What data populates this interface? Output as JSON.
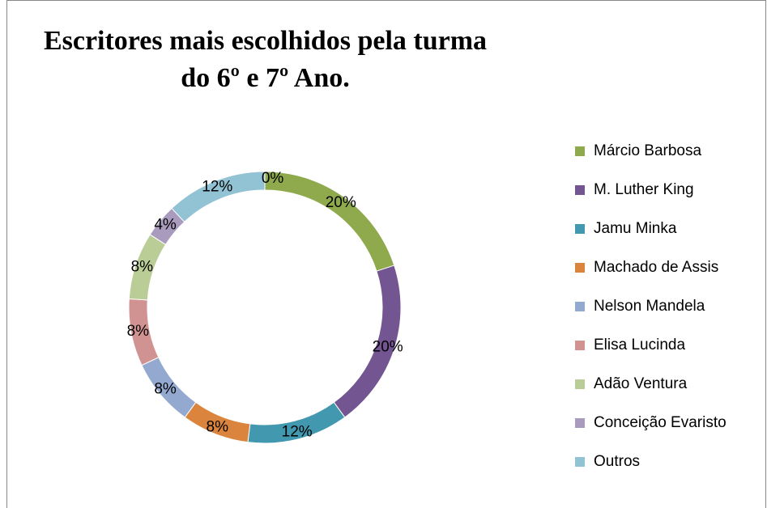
{
  "chart_data": {
    "type": "donut",
    "title": "Escritores mais escolhidos pela turma do 6º e 7º Ano.",
    "categories": [
      "Márcio Barbosa",
      "M. Luther King",
      "Jamu Minka",
      "Machado de Assis",
      "Nelson Mandela",
      "Elisa Lucinda",
      "Adão Ventura",
      "Conceição Evaristo",
      "Outros",
      null
    ],
    "values": [
      20,
      20,
      12,
      8,
      8,
      8,
      8,
      4,
      12,
      0
    ],
    "value_labels": [
      "20%",
      "20%",
      "12%",
      "8%",
      "8%",
      "8%",
      "8%",
      "4%",
      "12%",
      "0%"
    ],
    "colors": [
      "#8faa4d",
      "#735592",
      "#4198af",
      "#db843d",
      "#93a9d0",
      "#d09392",
      "#bacd96",
      "#a99bbd",
      "#92c3d4",
      null
    ],
    "legend": "right"
  }
}
